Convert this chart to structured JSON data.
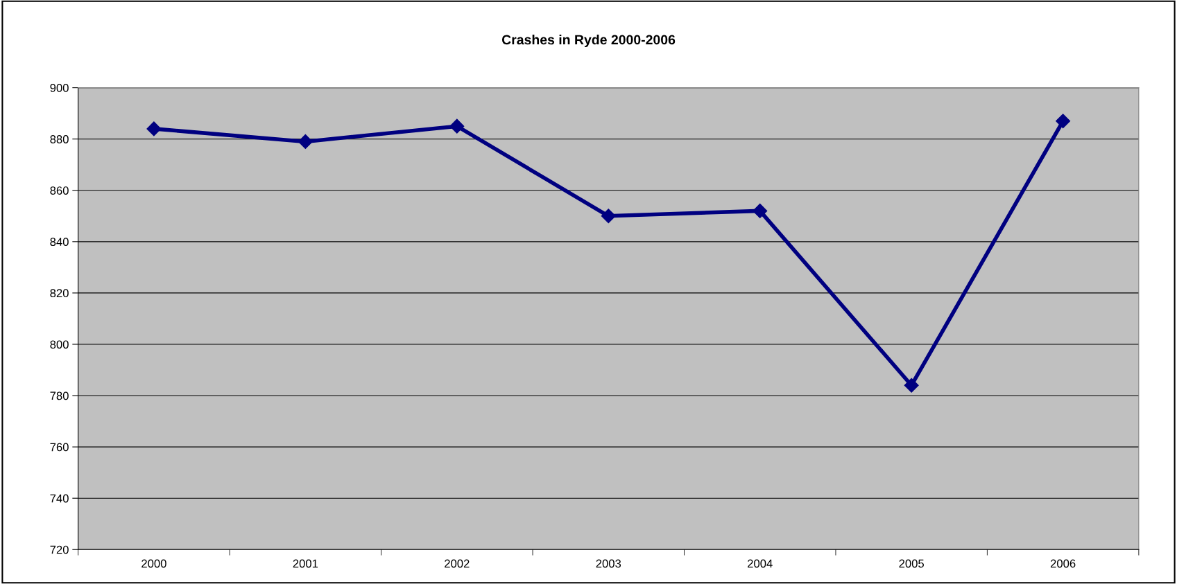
{
  "chart_data": {
    "type": "line",
    "title": "Crashes in Ryde 2000-2006",
    "categories": [
      "2000",
      "2001",
      "2002",
      "2003",
      "2004",
      "2005",
      "2006"
    ],
    "series": [
      {
        "color": "#000080",
        "values": [
          884,
          879,
          885,
          850,
          852,
          784,
          887
        ]
      }
    ],
    "ylim": [
      720,
      900
    ],
    "yticks": [
      720,
      740,
      760,
      780,
      800,
      820,
      840,
      860,
      880,
      900
    ],
    "grid": "y",
    "marker": "diamond",
    "line_style": "solid"
  }
}
